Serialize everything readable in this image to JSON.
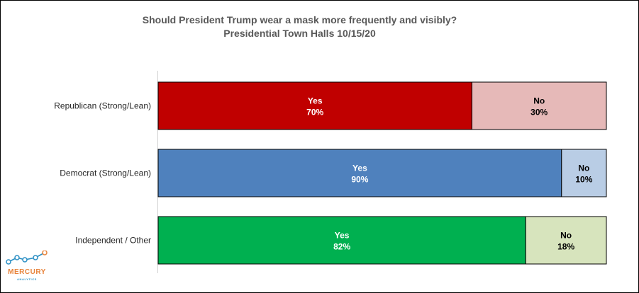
{
  "chart_data": {
    "type": "bar",
    "orientation": "horizontal",
    "stacked": "100%",
    "title": "Should President Trump wear a mask more frequently and visibly?",
    "subtitle": "Presidential Town Halls 10/15/20",
    "categories": [
      "Republican (Strong/Lean)",
      "Democrat (Strong/Lean)",
      "Independent / Other"
    ],
    "series": [
      {
        "name": "Yes",
        "values": [
          70,
          90,
          82
        ]
      },
      {
        "name": "No",
        "values": [
          30,
          10,
          18
        ]
      }
    ],
    "value_suffix": "%",
    "xlim": [
      0,
      100
    ],
    "grid": false,
    "legend": "none",
    "colors": {
      "yes": [
        "#c00000",
        "#4f81bd",
        "#00b050"
      ],
      "no": [
        "#e6b9b8",
        "#b9cde5",
        "#d7e4bd"
      ],
      "yes_text": "#ffffff",
      "no_text": "#000000"
    }
  },
  "logo": {
    "name": "MERCURY",
    "subname": "ANALYTICS",
    "colors": [
      "#2a8fc4",
      "#e8833a"
    ]
  }
}
